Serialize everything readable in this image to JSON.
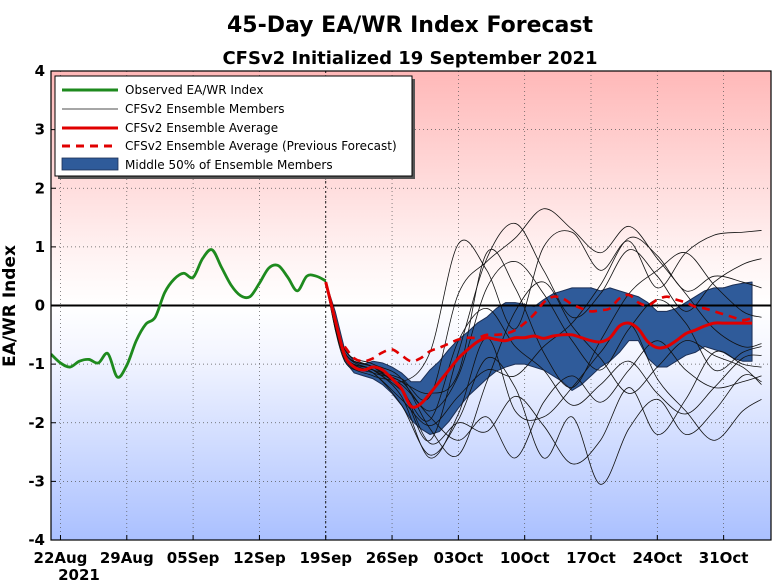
{
  "chart_data": {
    "type": "line",
    "title": "45-Day EA/WR Index Forecast",
    "subtitle": "CFSv2 Initialized 19 September 2021",
    "ylabel": "EA/WR Index",
    "xlabel": "",
    "ylim": [
      -4,
      4
    ],
    "x_range_days": [
      -29,
      47
    ],
    "yticks": [
      "-4",
      "-3",
      "-2",
      "-1",
      "0",
      "1",
      "2",
      "3",
      "4"
    ],
    "yticks_values": [
      -4,
      -3,
      -2,
      -1,
      0,
      1,
      2,
      3,
      4
    ],
    "xticks": [
      {
        "day": -28,
        "label": "22Aug"
      },
      {
        "day": -21,
        "label": "29Aug"
      },
      {
        "day": -14,
        "label": "05Sep"
      },
      {
        "day": -7,
        "label": "12Sep"
      },
      {
        "day": 0,
        "label": "19Sep"
      },
      {
        "day": 7,
        "label": "26Sep"
      },
      {
        "day": 14,
        "label": "03Oct"
      },
      {
        "day": 21,
        "label": "10Oct"
      },
      {
        "day": 28,
        "label": "17Oct"
      },
      {
        "day": 35,
        "label": "24Oct"
      },
      {
        "day": 42,
        "label": "31Oct"
      }
    ],
    "year_label": "2021",
    "grid": "dotted",
    "legend": {
      "position": "top-left",
      "entries": [
        "Observed EA/WR Index",
        "CFSv2 Ensemble Members",
        "CFSv2 Ensemble Average",
        "CFSv2 Ensemble Average (Previous Forecast)",
        "Middle 50% of Ensemble Members"
      ]
    },
    "colors": {
      "observed": "#1e8a1e",
      "member": "#111111",
      "average": "#e00000",
      "previous": "#e00000",
      "band_fill": "#2f5b9a",
      "band_stroke": "#1c2f55",
      "bg_top": "#ffb8b8",
      "bg_bottom": "#aac0ff"
    },
    "series": [
      {
        "name": "Observed EA/WR Index",
        "x": [
          -29,
          -28,
          -27,
          -26,
          -25,
          -24,
          -23,
          -22,
          -21,
          -20,
          -19,
          -18,
          -17,
          -16,
          -15,
          -14,
          -13,
          -12,
          -11,
          -10,
          -9,
          -8,
          -7,
          -6,
          -5,
          -4,
          -3,
          -2,
          -1,
          0
        ],
        "values": [
          -0.83,
          -0.98,
          -1.05,
          -0.95,
          -0.92,
          -0.98,
          -0.82,
          -1.22,
          -1.02,
          -0.6,
          -0.32,
          -0.2,
          0.22,
          0.45,
          0.55,
          0.48,
          0.8,
          0.95,
          0.65,
          0.35,
          0.17,
          0.15,
          0.38,
          0.64,
          0.68,
          0.48,
          0.25,
          0.5,
          0.5,
          0.42
        ]
      },
      {
        "name": "CFSv2 Ensemble Average",
        "x": [
          0,
          1,
          2,
          3,
          4,
          5,
          6,
          7,
          8,
          9,
          10,
          11,
          12,
          13,
          14,
          15,
          16,
          17,
          18,
          19,
          20,
          21,
          22,
          23,
          24,
          25,
          26,
          27,
          28,
          29,
          30,
          31,
          32,
          33,
          34,
          35,
          36,
          37,
          38,
          39,
          40,
          41,
          42,
          43,
          44,
          45
        ],
        "values": [
          0.4,
          -0.25,
          -0.85,
          -1.05,
          -1.1,
          -1.05,
          -1.1,
          -1.25,
          -1.42,
          -1.72,
          -1.68,
          -1.5,
          -1.3,
          -1.1,
          -0.9,
          -0.75,
          -0.62,
          -0.55,
          -0.58,
          -0.6,
          -0.55,
          -0.55,
          -0.52,
          -0.56,
          -0.52,
          -0.5,
          -0.5,
          -0.55,
          -0.6,
          -0.62,
          -0.55,
          -0.35,
          -0.3,
          -0.4,
          -0.62,
          -0.72,
          -0.7,
          -0.6,
          -0.48,
          -0.42,
          -0.35,
          -0.3,
          -0.3,
          -0.3,
          -0.3,
          -0.3
        ]
      },
      {
        "name": "CFSv2 Ensemble Average (Previous Forecast)",
        "x": [
          2,
          3,
          4,
          5,
          6,
          7,
          8,
          9,
          10,
          11,
          12,
          13,
          14,
          15,
          16,
          17,
          18,
          19,
          20,
          21,
          22,
          23,
          24,
          25,
          26,
          27,
          28,
          29,
          30,
          31,
          32,
          33,
          34,
          35,
          36,
          37,
          38,
          39,
          40,
          41,
          42,
          43,
          44,
          45
        ],
        "values": [
          -0.7,
          -0.9,
          -0.95,
          -0.9,
          -0.8,
          -0.75,
          -0.85,
          -0.95,
          -0.9,
          -0.78,
          -0.72,
          -0.65,
          -0.58,
          -0.55,
          -0.55,
          -0.5,
          -0.5,
          -0.48,
          -0.42,
          -0.3,
          -0.15,
          0.05,
          0.15,
          0.12,
          0.02,
          -0.05,
          -0.1,
          -0.08,
          -0.05,
          0.12,
          0.18,
          0.05,
          0.0,
          0.1,
          0.15,
          0.1,
          0.05,
          -0.02,
          -0.05,
          -0.1,
          -0.15,
          -0.2,
          -0.25,
          -0.22
        ]
      }
    ],
    "middle_50_band": {
      "name": "Middle 50% of Ensemble Members",
      "x": [
        0,
        1,
        2,
        3,
        4,
        5,
        6,
        7,
        8,
        9,
        10,
        11,
        12,
        13,
        14,
        15,
        16,
        17,
        18,
        19,
        20,
        21,
        22,
        23,
        24,
        25,
        26,
        27,
        28,
        29,
        30,
        31,
        32,
        33,
        34,
        35,
        36,
        37,
        38,
        39,
        40,
        41,
        42,
        43,
        44,
        45
      ],
      "upper": [
        0.4,
        -0.1,
        -0.75,
        -0.95,
        -1.0,
        -0.95,
        -0.98,
        -1.05,
        -1.15,
        -1.3,
        -1.3,
        -1.1,
        -0.95,
        -0.75,
        -0.58,
        -0.45,
        -0.3,
        -0.2,
        -0.05,
        0.05,
        0.05,
        0.02,
        -0.02,
        0.1,
        0.2,
        0.25,
        0.3,
        0.3,
        0.3,
        0.25,
        0.3,
        0.25,
        0.2,
        0.15,
        0.05,
        -0.1,
        -0.1,
        -0.05,
        0.05,
        0.15,
        0.25,
        0.3,
        0.3,
        0.35,
        0.38,
        0.4
      ],
      "lower": [
        0.38,
        -0.4,
        -0.95,
        -1.15,
        -1.2,
        -1.25,
        -1.35,
        -1.5,
        -1.7,
        -1.95,
        -2.1,
        -2.2,
        -2.15,
        -1.98,
        -1.75,
        -1.55,
        -1.4,
        -1.25,
        -1.12,
        -1.05,
        -1.0,
        -1.0,
        -1.05,
        -1.1,
        -1.2,
        -1.3,
        -1.45,
        -1.35,
        -1.2,
        -1.05,
        -0.95,
        -0.8,
        -0.6,
        -0.6,
        -0.9,
        -1.05,
        -1.05,
        -0.95,
        -0.85,
        -0.8,
        -0.7,
        -0.75,
        -0.8,
        -0.9,
        -0.95,
        -0.95
      ]
    },
    "ensemble_members": [
      {
        "x": [
          0,
          2,
          5,
          8,
          11,
          14,
          17,
          20,
          23,
          26,
          29,
          32,
          35,
          38,
          41,
          44,
          46
        ],
        "values": [
          0.38,
          -0.75,
          -1.05,
          -1.3,
          -0.8,
          1.05,
          0.6,
          -0.4,
          1.0,
          1.25,
          0.6,
          1.1,
          0.3,
          0.9,
          1.2,
          1.25,
          1.28
        ]
      },
      {
        "x": [
          0,
          2,
          5,
          8,
          11,
          14,
          17,
          20,
          23,
          26,
          29,
          32,
          35,
          38,
          41,
          44,
          46
        ],
        "values": [
          0.4,
          -0.8,
          -1.05,
          -1.45,
          -2.3,
          -0.8,
          0.8,
          1.4,
          0.6,
          -0.2,
          0.2,
          0.95,
          0.5,
          -0.1,
          0.4,
          0.7,
          0.8
        ]
      },
      {
        "x": [
          0,
          2,
          5,
          8,
          11,
          14,
          17,
          20,
          23,
          26,
          29,
          32,
          35,
          38,
          41,
          44,
          46
        ],
        "values": [
          0.4,
          -0.9,
          -1.15,
          -1.7,
          -2.55,
          -1.95,
          -0.9,
          -1.4,
          -2.6,
          -1.9,
          -3.05,
          -2.1,
          -1.6,
          -2.2,
          -1.8,
          -1.2,
          -1.3
        ]
      },
      {
        "x": [
          0,
          2,
          5,
          8,
          11,
          14,
          17,
          20,
          23,
          26,
          29,
          32,
          35,
          38,
          41,
          44,
          46
        ],
        "values": [
          0.4,
          -0.95,
          -1.1,
          -1.25,
          -1.55,
          0.2,
          0.75,
          1.15,
          1.65,
          1.3,
          0.9,
          1.35,
          0.8,
          0.2,
          -0.4,
          -0.7,
          -0.65
        ]
      },
      {
        "x": [
          0,
          2,
          5,
          8,
          11,
          14,
          17,
          20,
          23,
          26,
          29,
          32,
          35,
          38,
          41,
          44,
          46
        ],
        "values": [
          0.4,
          -0.85,
          -1.1,
          -1.55,
          -2.6,
          -1.85,
          -0.55,
          -1.8,
          -1.9,
          -1.4,
          -0.8,
          -0.3,
          -1.25,
          -1.8,
          -2.3,
          -1.8,
          -1.6
        ]
      },
      {
        "x": [
          0,
          2,
          5,
          8,
          11,
          14,
          17,
          20,
          23,
          26,
          29,
          32,
          35,
          38,
          41,
          44,
          46
        ],
        "values": [
          0.4,
          -0.8,
          -1.1,
          -1.4,
          -2.35,
          -2.0,
          -2.15,
          -1.55,
          -2.05,
          -2.7,
          -2.3,
          -1.4,
          -2.2,
          -1.6,
          -0.8,
          -1.0,
          -1.05
        ]
      },
      {
        "x": [
          0,
          2,
          5,
          8,
          11,
          14,
          17,
          20,
          23,
          26,
          29,
          32,
          35,
          38,
          41,
          44,
          46
        ],
        "values": [
          0.4,
          -0.9,
          -1.15,
          -1.3,
          -1.8,
          -1.2,
          0.3,
          0.75,
          0.2,
          -0.6,
          -1.1,
          -0.4,
          0.1,
          -0.3,
          -1.1,
          -0.8,
          -0.7
        ]
      },
      {
        "x": [
          0,
          2,
          5,
          8,
          11,
          14,
          17,
          20,
          23,
          26,
          29,
          32,
          35,
          38,
          41,
          44,
          46
        ],
        "values": [
          0.4,
          -0.75,
          -1.0,
          -1.25,
          -2.1,
          -2.55,
          -1.3,
          -0.1,
          0.4,
          -0.35,
          -0.9,
          -1.5,
          -1.05,
          -0.6,
          -0.85,
          -1.05,
          -1.35
        ]
      },
      {
        "x": [
          0,
          2,
          5,
          8,
          11,
          14,
          17,
          20,
          23,
          26,
          29,
          32,
          35,
          38,
          41,
          44,
          46
        ],
        "values": [
          0.4,
          -0.85,
          -1.15,
          -1.6,
          -2.05,
          -1.55,
          -1.1,
          -1.2,
          -0.7,
          -0.3,
          0.35,
          1.15,
          0.85,
          0.25,
          0.5,
          0.4,
          0.3
        ]
      },
      {
        "x": [
          0,
          2,
          5,
          8,
          11,
          14,
          17,
          20,
          23,
          26,
          29,
          32,
          35,
          38,
          41,
          44,
          46
        ],
        "values": [
          0.4,
          -0.9,
          -1.2,
          -1.35,
          -1.9,
          -2.3,
          -1.9,
          -2.6,
          -1.65,
          -1.2,
          -1.65,
          -1.1,
          -0.6,
          -1.1,
          -1.4,
          -1.3,
          -1.2
        ]
      },
      {
        "x": [
          0,
          2,
          5,
          8,
          11,
          14,
          17,
          20,
          23,
          26,
          29,
          32,
          35,
          38,
          41,
          44,
          46
        ],
        "values": [
          0.4,
          -0.8,
          -1.05,
          -1.3,
          -1.5,
          -1.15,
          0.9,
          0.3,
          -0.8,
          -1.4,
          -0.6,
          0.2,
          0.6,
          0.9,
          0.35,
          -0.1,
          -0.2
        ]
      },
      {
        "x": [
          0,
          2,
          5,
          8,
          11,
          14,
          17,
          20,
          23,
          26,
          29,
          32,
          35,
          38,
          41,
          44,
          46
        ],
        "values": [
          0.4,
          -0.85,
          -1.1,
          -1.45,
          -1.95,
          -0.6,
          -0.05,
          -0.7,
          -1.1,
          -1.7,
          -1.35,
          -0.95,
          -1.5,
          -1.85,
          -1.4,
          -0.9,
          -0.85
        ]
      }
    ]
  }
}
